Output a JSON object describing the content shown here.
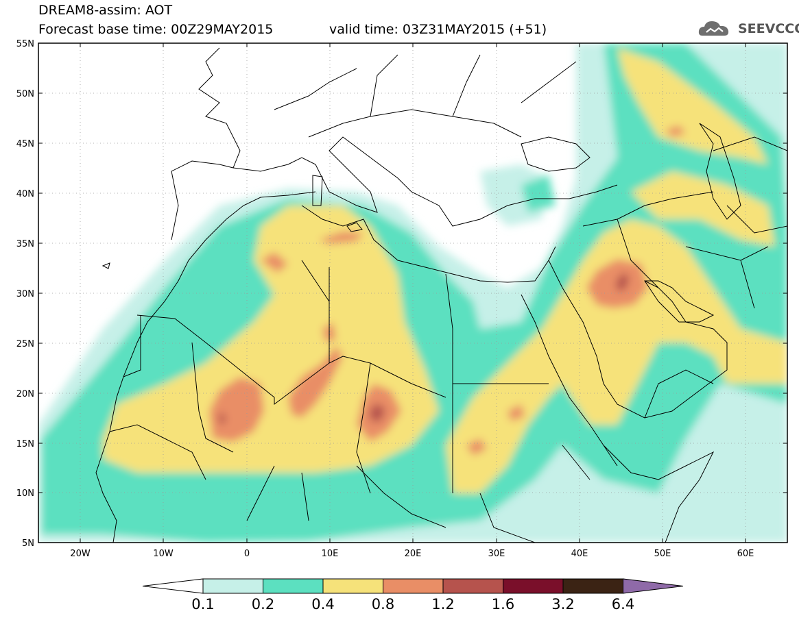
{
  "header": {
    "model_line": "DREAM8-assim: AOT",
    "base_time_line": "Forecast base time: 00Z29MAY2015",
    "valid_time_line": "valid time: 03Z31MAY2015 (+51)"
  },
  "logo": {
    "text": "SEEVCCC",
    "icon": "cloud-logo-icon"
  },
  "map": {
    "lat_labels": [
      "55N",
      "50N",
      "45N",
      "40N",
      "35N",
      "30N",
      "25N",
      "20N",
      "15N",
      "10N",
      "5N"
    ],
    "lon_labels": [
      "20W",
      "10W",
      "0",
      "10E",
      "20E",
      "30E",
      "40E",
      "50E",
      "60E"
    ],
    "lat_range": [
      5,
      55
    ],
    "lon_range": [
      -25,
      65
    ],
    "grid": true
  },
  "colorbar": {
    "levels": [
      "0.1",
      "0.2",
      "0.4",
      "0.8",
      "1.2",
      "1.6",
      "3.2",
      "6.4"
    ],
    "colors": [
      "#ffffff",
      "#c6f0e8",
      "#5ce0c0",
      "#f6e27a",
      "#e98e66",
      "#b6534d",
      "#7a0f2a",
      "#3b2314",
      "#8f6aa8"
    ]
  }
}
